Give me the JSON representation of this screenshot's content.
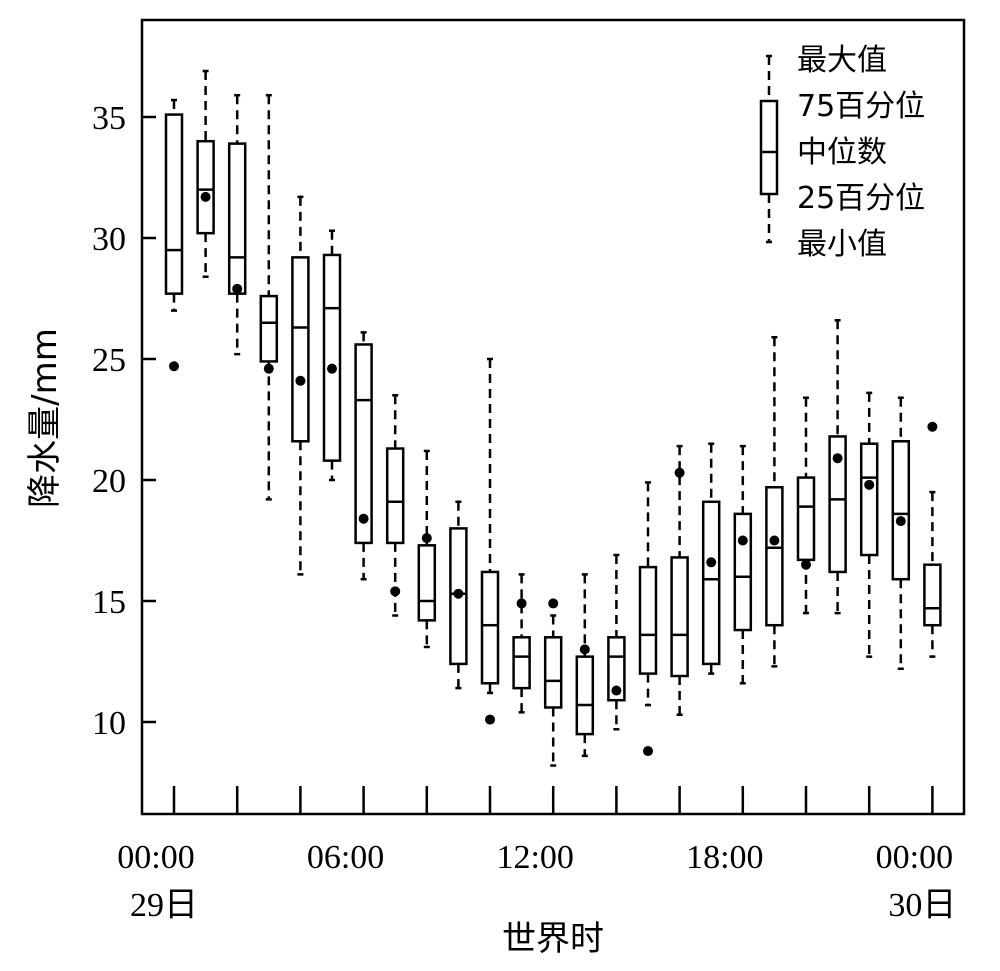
{
  "chart_data": {
    "type": "boxplot",
    "ylabel": "降水量/mm",
    "xlabel": "世界时",
    "ylim": [
      7.5,
      37.5
    ],
    "yticks": [
      10,
      15,
      20,
      25,
      30,
      35
    ],
    "xticks": [
      {
        "hour": 0,
        "line1": "00:00",
        "line2": "29日"
      },
      {
        "hour": 6,
        "line1": "06:00",
        "line2": ""
      },
      {
        "hour": 12,
        "line1": "12:00",
        "line2": ""
      },
      {
        "hour": 18,
        "line1": "18:00",
        "line2": ""
      },
      {
        "hour": 24,
        "line1": "00:00",
        "line2": "30日"
      }
    ],
    "legend_position": "top-right",
    "legend": {
      "max": "最大值",
      "q75": "75百分位",
      "median": "中位数",
      "q25": "25百分位",
      "min": "最小值"
    },
    "boxes": [
      {
        "hour": 0,
        "min": 27.0,
        "q1": 27.7,
        "median": 29.5,
        "q3": 35.1,
        "max": 35.7,
        "mean": 24.7
      },
      {
        "hour": 1,
        "min": 28.4,
        "q1": 30.2,
        "median": 32.0,
        "q3": 34.0,
        "max": 36.9,
        "mean": 31.7
      },
      {
        "hour": 2,
        "min": 25.2,
        "q1": 27.7,
        "median": 29.2,
        "q3": 33.9,
        "max": 35.9,
        "mean": 27.9
      },
      {
        "hour": 3,
        "min": 19.2,
        "q1": 24.9,
        "median": 26.5,
        "q3": 27.6,
        "max": 35.9,
        "mean": 24.6
      },
      {
        "hour": 4,
        "min": 16.1,
        "q1": 21.6,
        "median": 26.3,
        "q3": 29.2,
        "max": 31.7,
        "mean": 24.1
      },
      {
        "hour": 5,
        "min": 20.0,
        "q1": 20.8,
        "median": 27.1,
        "q3": 29.3,
        "max": 30.3,
        "mean": 24.6
      },
      {
        "hour": 6,
        "min": 15.9,
        "q1": 17.4,
        "median": 23.3,
        "q3": 25.6,
        "max": 26.1,
        "mean": 18.4
      },
      {
        "hour": 7,
        "min": 14.4,
        "q1": 17.4,
        "median": 19.1,
        "q3": 21.3,
        "max": 23.5,
        "mean": 15.4
      },
      {
        "hour": 8,
        "min": 13.1,
        "q1": 14.2,
        "median": 15.0,
        "q3": 17.3,
        "max": 21.2,
        "mean": 17.6
      },
      {
        "hour": 9,
        "min": 11.4,
        "q1": 12.4,
        "median": 15.3,
        "q3": 18.0,
        "max": 19.1,
        "mean": 15.3
      },
      {
        "hour": 10,
        "min": 11.2,
        "q1": 11.6,
        "median": 14.0,
        "q3": 16.2,
        "max": 25.0,
        "mean": 10.1
      },
      {
        "hour": 11,
        "min": 10.4,
        "q1": 11.4,
        "median": 12.7,
        "q3": 13.5,
        "max": 16.1,
        "mean": 14.9
      },
      {
        "hour": 12,
        "min": 8.2,
        "q1": 10.6,
        "median": 11.7,
        "q3": 13.5,
        "max": 14.4,
        "mean": 14.9
      },
      {
        "hour": 13,
        "min": 8.6,
        "q1": 9.5,
        "median": 10.7,
        "q3": 12.7,
        "max": 16.1,
        "mean": 13.0
      },
      {
        "hour": 14,
        "min": 9.7,
        "q1": 10.9,
        "median": 12.7,
        "q3": 13.5,
        "max": 16.9,
        "mean": 11.3
      },
      {
        "hour": 15,
        "min": 10.7,
        "q1": 12.0,
        "median": 13.6,
        "q3": 16.4,
        "max": 19.9,
        "mean": 8.8
      },
      {
        "hour": 16,
        "min": 10.3,
        "q1": 11.9,
        "median": 13.6,
        "q3": 16.8,
        "max": 21.4,
        "mean": 20.3
      },
      {
        "hour": 17,
        "min": 12.0,
        "q1": 12.4,
        "median": 15.9,
        "q3": 19.1,
        "max": 21.5,
        "mean": 16.6
      },
      {
        "hour": 18,
        "min": 11.6,
        "q1": 13.8,
        "median": 16.0,
        "q3": 18.6,
        "max": 21.4,
        "mean": 17.5
      },
      {
        "hour": 19,
        "min": 12.3,
        "q1": 14.0,
        "median": 17.2,
        "q3": 19.7,
        "max": 25.9,
        "mean": 17.5
      },
      {
        "hour": 20,
        "min": 14.5,
        "q1": 16.7,
        "median": 18.9,
        "q3": 20.1,
        "max": 23.4,
        "mean": 16.5
      },
      {
        "hour": 21,
        "min": 14.5,
        "q1": 16.2,
        "median": 19.2,
        "q3": 21.8,
        "max": 26.6,
        "mean": 20.9
      },
      {
        "hour": 22,
        "min": 12.7,
        "q1": 16.9,
        "median": 20.1,
        "q3": 21.5,
        "max": 23.6,
        "mean": 19.8
      },
      {
        "hour": 23,
        "min": 12.2,
        "q1": 15.9,
        "median": 18.6,
        "q3": 21.6,
        "max": 23.4,
        "mean": 18.3
      },
      {
        "hour": 24,
        "min": 12.7,
        "q1": 14.0,
        "median": 14.7,
        "q3": 16.5,
        "max": 19.5,
        "mean": 22.2
      }
    ]
  }
}
